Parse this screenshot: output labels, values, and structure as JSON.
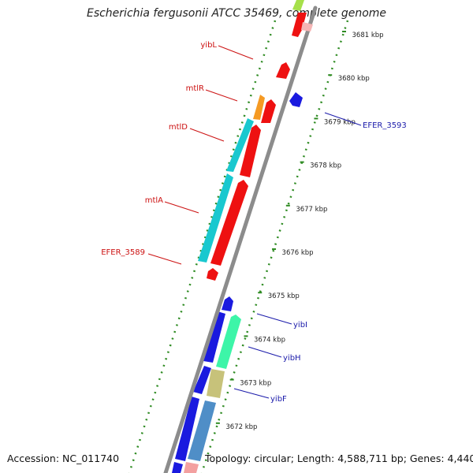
{
  "title": "Escherichia fergusonii ATCC 35469, complete genome",
  "footer": {
    "accession": "Accession: NC_011740",
    "topology": "Topology: circular; Length: 4,588,711 bp; Genes: 4,440"
  },
  "colors": {
    "backbone": "#8c8c8c",
    "ruler": "#2e8b22",
    "label_forward": "#cc1111",
    "label_reverse": "#1a1aaa"
  },
  "ruler_ticks": [
    {
      "label": "3681 kbp",
      "kbp": 3681
    },
    {
      "label": "3680 kbp",
      "kbp": 3680
    },
    {
      "label": "3679 kbp",
      "kbp": 3679
    },
    {
      "label": "3678 kbp",
      "kbp": 3678
    },
    {
      "label": "3677 kbp",
      "kbp": 3677
    },
    {
      "label": "3676 kbp",
      "kbp": 3676
    },
    {
      "label": "3675 kbp",
      "kbp": 3675
    },
    {
      "label": "3674 kbp",
      "kbp": 3674
    },
    {
      "label": "3673 kbp",
      "kbp": 3673
    },
    {
      "label": "3672 kbp",
      "kbp": 3672
    }
  ],
  "gene_labels": [
    {
      "name": "yibL",
      "strand": "forward"
    },
    {
      "name": "mtlR",
      "strand": "forward"
    },
    {
      "name": "mtlD",
      "strand": "forward"
    },
    {
      "name": "mtlA",
      "strand": "forward"
    },
    {
      "name": "EFER_3589",
      "strand": "forward"
    },
    {
      "name": "EFER_3593",
      "strand": "reverse"
    },
    {
      "name": "yibI",
      "strand": "reverse"
    },
    {
      "name": "yibH",
      "strand": "reverse"
    },
    {
      "name": "yibF",
      "strand": "reverse"
    }
  ]
}
